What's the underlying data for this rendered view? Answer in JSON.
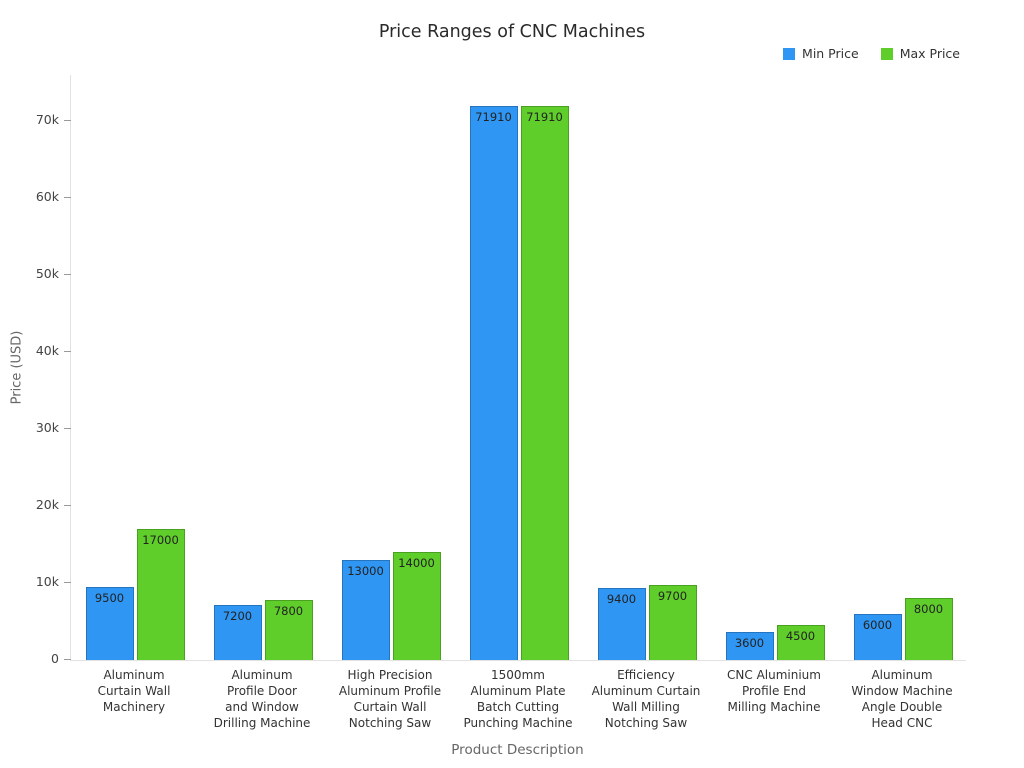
{
  "chart_data": {
    "type": "bar",
    "title": "Price Ranges of CNC Machines",
    "xlabel": "Product Description",
    "ylabel": "Price (USD)",
    "categories": [
      "Aluminum Curtain Wall Machinery",
      "Aluminum Profile Door and Window Drilling Machine",
      "High Precision Aluminum Profile Curtain Wall Notching Saw",
      "1500mm Aluminum Plate Batch Cutting Punching Machine",
      "Efficiency Aluminum Curtain Wall Milling Notching Saw",
      "CNC Aluminium Profile End Milling Machine",
      "Aluminum Window Machine Angle Double Head CNC"
    ],
    "category_lines": [
      [
        "Aluminum",
        "Curtain Wall",
        "Machinery"
      ],
      [
        "Aluminum",
        "Profile Door",
        "and Window",
        "Drilling Machine"
      ],
      [
        "High Precision",
        "Aluminum Profile",
        "Curtain Wall",
        "Notching Saw"
      ],
      [
        "1500mm",
        "Aluminum Plate",
        "Batch Cutting",
        "Punching Machine"
      ],
      [
        "Efficiency",
        "Aluminum Curtain",
        "Wall Milling",
        "Notching Saw"
      ],
      [
        "CNC Aluminium",
        "Profile End",
        "Milling Machine"
      ],
      [
        "Aluminum",
        "Window Machine",
        "Angle Double",
        "Head CNC"
      ]
    ],
    "series": [
      {
        "name": "Min Price",
        "color": "#2F96F3",
        "values": [
          9500,
          7200,
          13000,
          71910,
          9400,
          3600,
          6000
        ]
      },
      {
        "name": "Max Price",
        "color": "#5FCE2A",
        "values": [
          17000,
          7800,
          14000,
          71910,
          9700,
          4500,
          8000
        ]
      }
    ],
    "bar_labels": true,
    "grid": false,
    "legend_position": "top-right",
    "ylim": [
      0,
      76000
    ],
    "yticks": [
      {
        "label": "0",
        "value": 0
      },
      {
        "label": "10k",
        "value": 10000
      },
      {
        "label": "20k",
        "value": 20000
      },
      {
        "label": "30k",
        "value": 30000
      },
      {
        "label": "40k",
        "value": 40000
      },
      {
        "label": "50k",
        "value": 50000
      },
      {
        "label": "60k",
        "value": 60000
      },
      {
        "label": "70k",
        "value": 70000
      }
    ]
  }
}
